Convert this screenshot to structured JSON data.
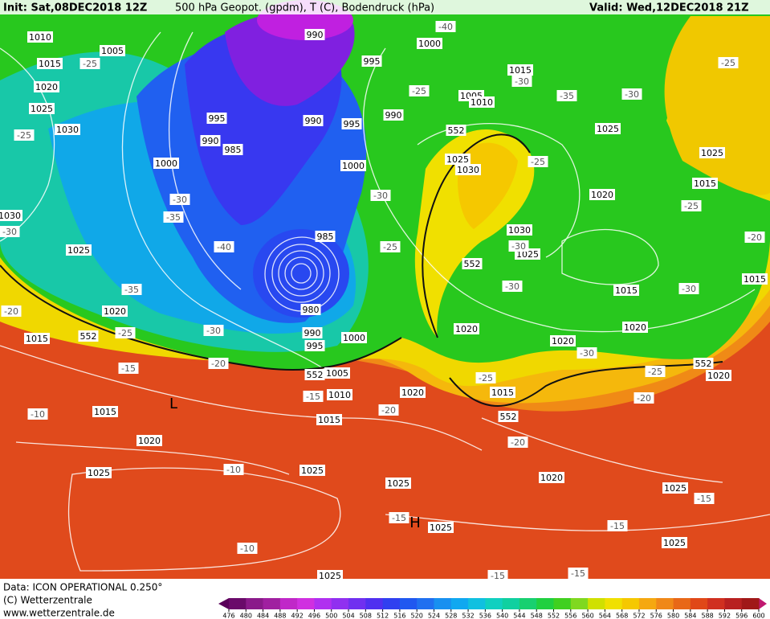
{
  "header": {
    "init": "Init: Sat,08DEC2018 12Z",
    "title": "500 hPa Geopot. (gpdm), T (C), Bodendruck (hPa)",
    "valid": "Valid: Wed,12DEC2018 21Z"
  },
  "map": {
    "labels": [
      "1010",
      "1005",
      "1015",
      "-25",
      "1020",
      "1025",
      "1030",
      "-25",
      "990",
      "1000",
      "995",
      "-40",
      "995",
      "990",
      "985",
      "1000",
      "990",
      "995",
      "990",
      "1000",
      "-25",
      "1015",
      "-30",
      "1005",
      "1010",
      "-35",
      "-30",
      "-25",
      "1025",
      "1025",
      "1015",
      "1020",
      "-25",
      "552",
      "1030",
      "1025",
      "-30",
      "-25",
      "-35",
      "-30",
      "-40",
      "985",
      "1025",
      "-35",
      "1020",
      "-20",
      "1015",
      "552",
      "-25",
      "-30",
      "-15",
      "-20",
      "990",
      "995",
      "1000",
      "980",
      "552",
      "1005",
      "1010",
      "-15",
      "1020",
      "1015",
      "-20",
      "1015",
      "-10",
      "L",
      "1020",
      "1025",
      "-10",
      "1025",
      "-10",
      "1025",
      "-15",
      "H",
      "1025",
      "1020",
      "-20",
      "552",
      "1015",
      "-25",
      "1020",
      "-30",
      "1020",
      "1020",
      "1015",
      "-30",
      "1025",
      "-30",
      "1030",
      "552",
      "-30",
      "1015",
      "-25",
      "552",
      "1020",
      "-20",
      "1025",
      "-15",
      "-15",
      "1025",
      "-15",
      "-15",
      "1025",
      "1030",
      "-30",
      "-25",
      "-20"
    ]
  },
  "footer": {
    "data": "Data: ICON OPERATIONAL 0.250°",
    "copyright": "(C) Wetterzentrale",
    "url": "www.wetterzentrale.de"
  },
  "colorbar": {
    "ticks": [
      476,
      480,
      484,
      488,
      492,
      496,
      500,
      504,
      508,
      512,
      516,
      520,
      524,
      528,
      532,
      536,
      540,
      544,
      548,
      552,
      556,
      560,
      564,
      568,
      572,
      576,
      580,
      584,
      588,
      592,
      596,
      600
    ],
    "colors": [
      "#6a0a6a",
      "#8a1a8a",
      "#a020a0",
      "#c028c8",
      "#d030e0",
      "#b030f0",
      "#9030f0",
      "#7030f0",
      "#5030f0",
      "#3040f0",
      "#2058f0",
      "#2070f0",
      "#1890f0",
      "#10a8f0",
      "#10c0e0",
      "#10d0c0",
      "#10d0a0",
      "#18d070",
      "#20d040",
      "#40d020",
      "#80d820",
      "#d0e000",
      "#f0e000",
      "#f5c800",
      "#f5a810",
      "#f08818",
      "#e86818",
      "#e04818",
      "#d03020",
      "#b82020",
      "#a01818"
    ]
  }
}
